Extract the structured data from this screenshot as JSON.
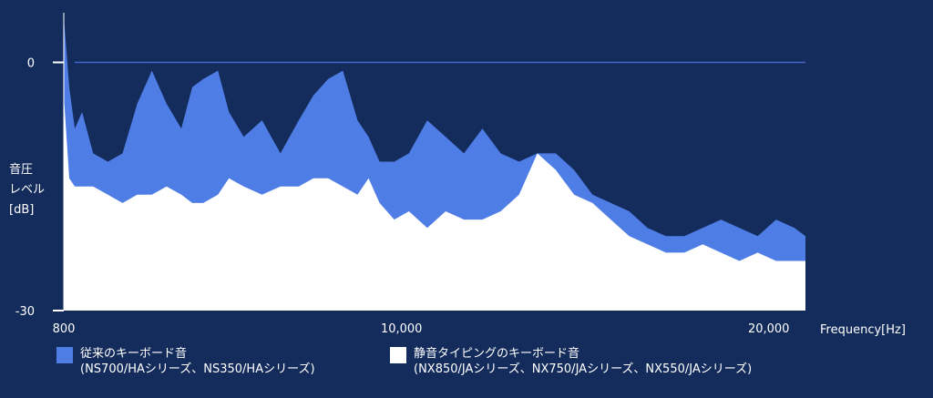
{
  "chart_data": {
    "type": "area",
    "title": "",
    "xlabel": "Frequency[Hz]",
    "ylabel_lines": [
      "音圧",
      "レベル",
      "[dB]"
    ],
    "x_tick_labels": [
      "800",
      "10,000",
      "20,000"
    ],
    "x_tick_values": [
      800,
      10000,
      20000
    ],
    "xlim": [
      800,
      21000
    ],
    "y_tick_labels": [
      "0",
      "-30"
    ],
    "y_tick_values": [
      0,
      -30
    ],
    "ylim": [
      -30,
      6
    ],
    "reference_line_y": 0,
    "grid": false,
    "series": [
      {
        "name": "従来のキーボード音",
        "name_sub": "(NS700/HAシリーズ、NS350/HAシリーズ)",
        "color": "#4f7de6",
        "x": [
          800,
          950,
          1100,
          1300,
          1600,
          2000,
          2400,
          2800,
          3200,
          3600,
          4000,
          4300,
          4600,
          5000,
          5300,
          5700,
          6200,
          6700,
          7200,
          7600,
          8000,
          8400,
          8800,
          9100,
          9400,
          9800,
          10200,
          10700,
          11200,
          11700,
          12200,
          12700,
          13200,
          13700,
          14200,
          14700,
          15200,
          15700,
          16200,
          16700,
          17200,
          17700,
          18200,
          18700,
          19200,
          19700,
          20200,
          20700,
          21000
        ],
        "values": [
          5.5,
          -3,
          -8,
          -6,
          -11,
          -12,
          -11,
          -5,
          -1,
          -5,
          -8,
          -3,
          -2,
          -1,
          -6,
          -9,
          -7,
          -11,
          -7,
          -4,
          -2,
          -1,
          -7,
          -9,
          -12,
          -12,
          -11,
          -7,
          -9,
          -11,
          -8,
          -11,
          -12,
          -11,
          -11,
          -13,
          -16,
          -17,
          -18,
          -20,
          -21,
          -21,
          -20,
          -19,
          -20,
          -21,
          -19,
          -20,
          -21
        ]
      },
      {
        "name": "静音タイピングのキーボード音",
        "name_sub": "(NX850/JAシリーズ、NX750/JAシリーズ、NX550/JAシリーズ)",
        "color": "#ffffff",
        "x": [
          800,
          950,
          1100,
          1300,
          1600,
          2000,
          2400,
          2800,
          3200,
          3600,
          4000,
          4300,
          4600,
          5000,
          5300,
          5700,
          6200,
          6700,
          7200,
          7600,
          8000,
          8400,
          8800,
          9100,
          9400,
          9800,
          10200,
          10700,
          11200,
          11700,
          12200,
          12700,
          13200,
          13700,
          14200,
          14700,
          15200,
          15700,
          16200,
          16700,
          17200,
          17700,
          18200,
          18700,
          19200,
          19700,
          20200,
          20700,
          21000
        ],
        "values": [
          -4,
          -14,
          -15,
          -15,
          -15,
          -16,
          -17,
          -16,
          -16,
          -15,
          -16,
          -17,
          -17,
          -16,
          -14,
          -15,
          -16,
          -15,
          -15,
          -14,
          -14,
          -15,
          -16,
          -14,
          -17,
          -19,
          -18,
          -20,
          -18,
          -19,
          -19,
          -18,
          -16,
          -11,
          -13,
          -16,
          -17,
          -19,
          -21,
          -22,
          -23,
          -23,
          -22,
          -23,
          -24,
          -23,
          -24,
          -24,
          -24
        ]
      }
    ]
  }
}
